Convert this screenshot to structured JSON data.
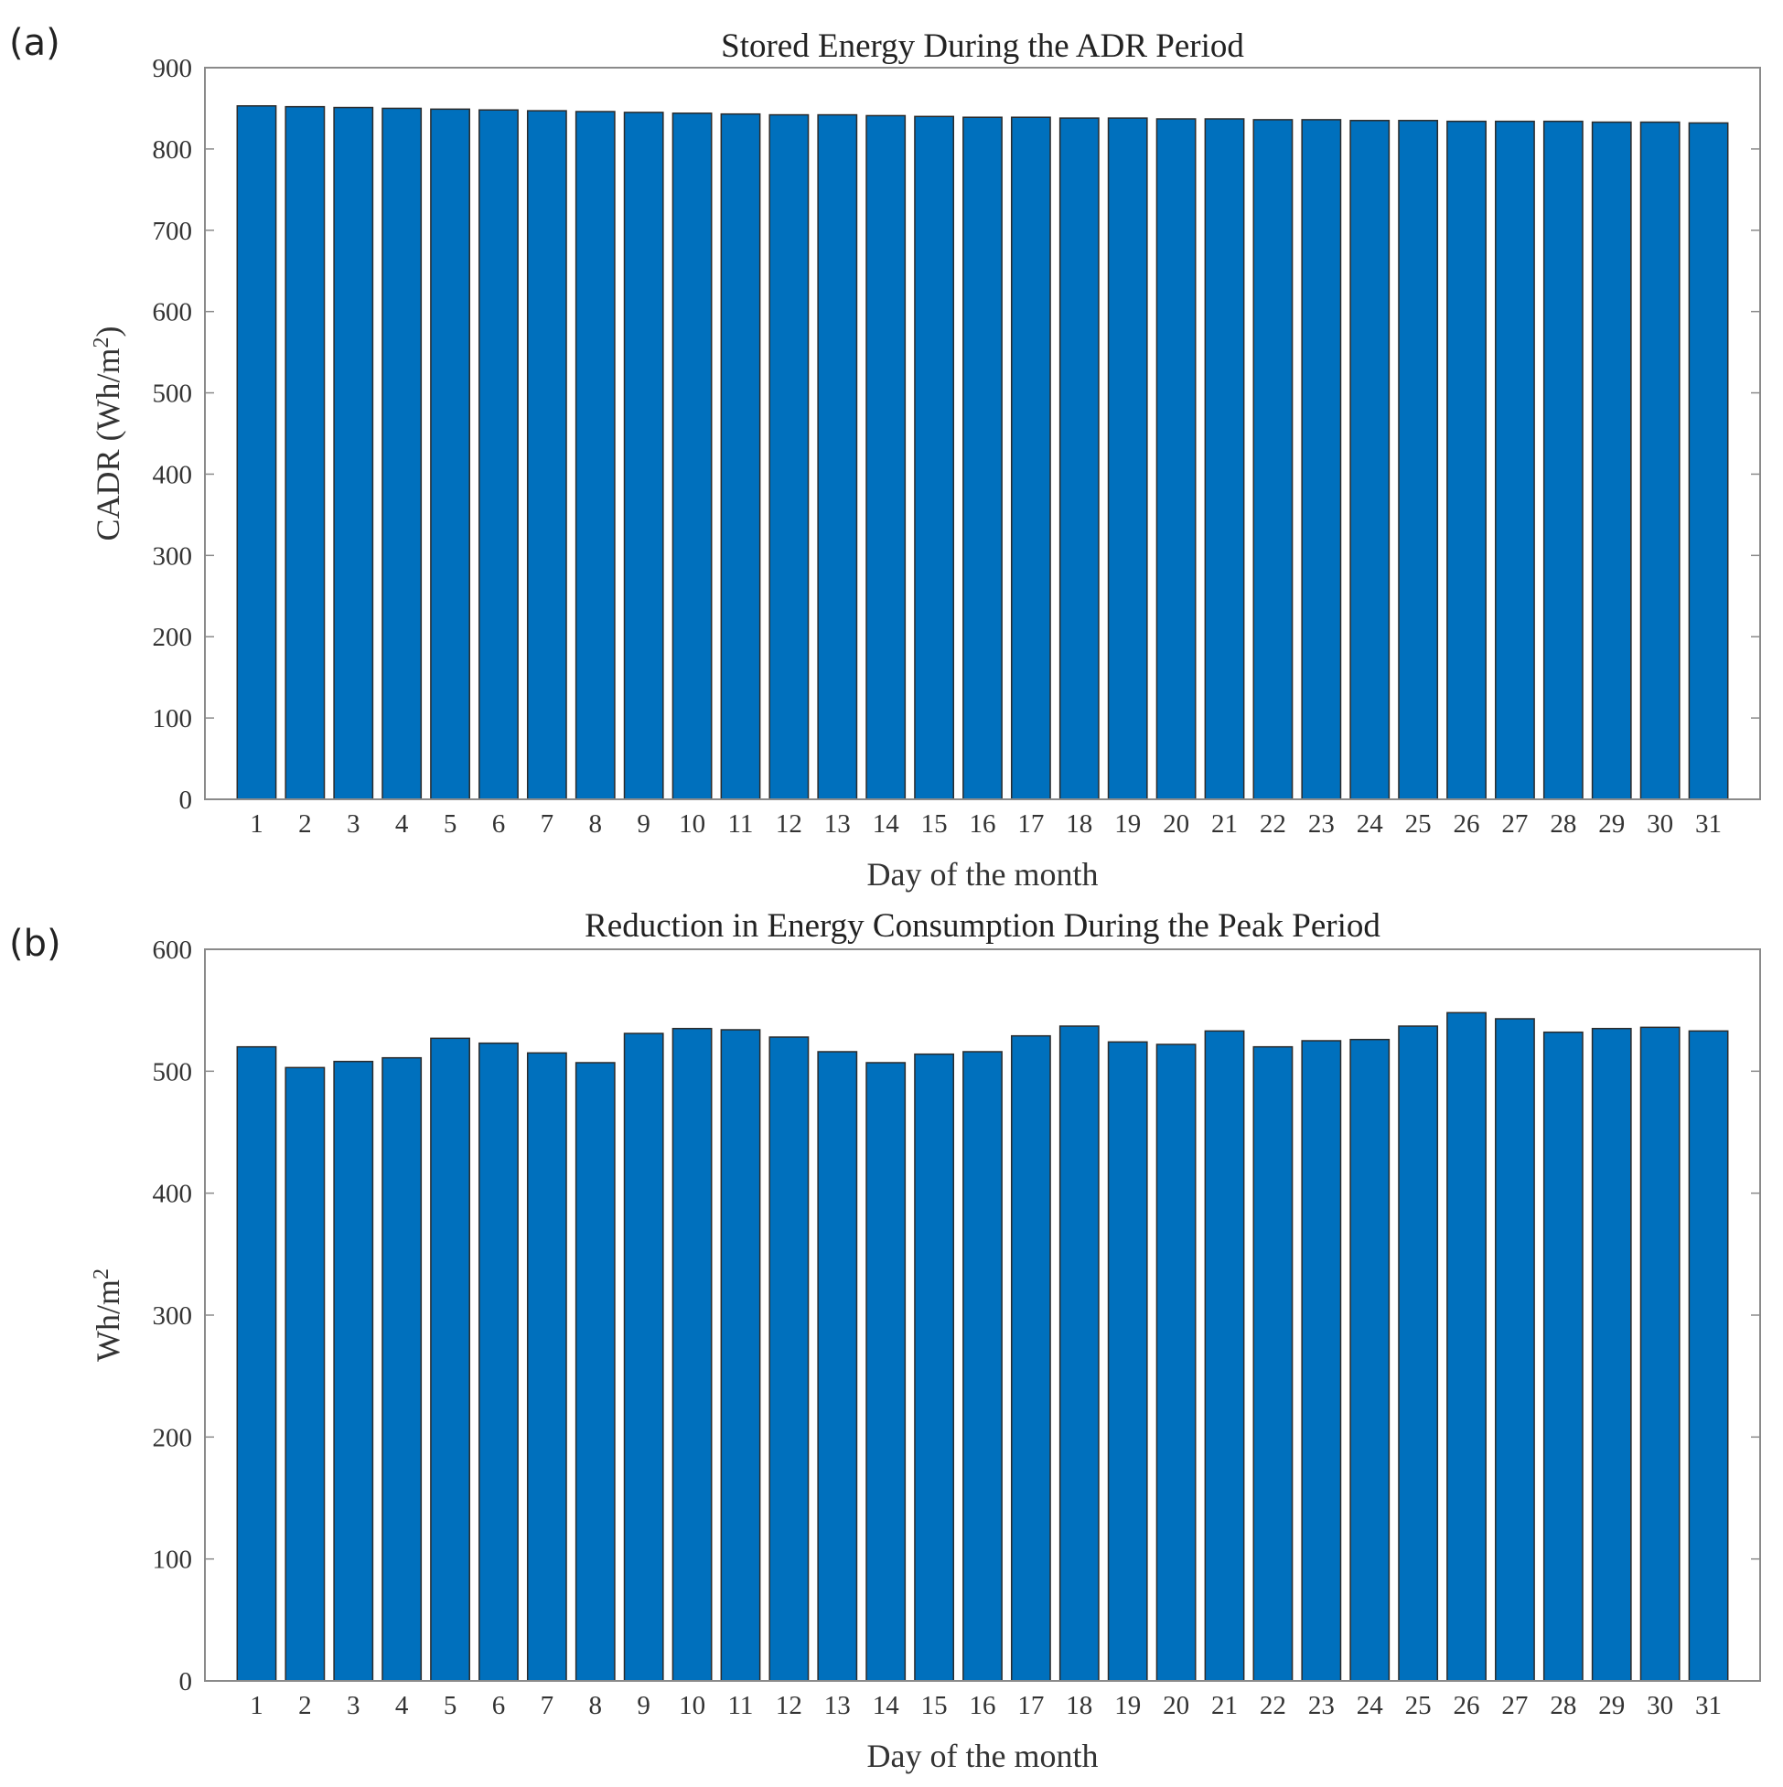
{
  "figure": {
    "panels": [
      "(a)",
      "(b)"
    ]
  },
  "colors": {
    "bar_fill": "#0070BD",
    "bar_edge": "#2b2b2b",
    "axis": "#8a8a8a",
    "text": "#333333"
  },
  "chart_data": [
    {
      "panel": "(a)",
      "type": "bar",
      "title": "Stored Energy During the ADR Period",
      "xlabel": "Day of the month",
      "ylabel": "CADR (Wh/m²)",
      "ylabel_parts": {
        "main": "CADR (Wh/m",
        "sup": "2",
        "tail": ")"
      },
      "ylim": [
        0,
        900
      ],
      "yticks": [
        0,
        100,
        200,
        300,
        400,
        500,
        600,
        700,
        800,
        900
      ],
      "categories": [
        "1",
        "2",
        "3",
        "4",
        "5",
        "6",
        "7",
        "8",
        "9",
        "10",
        "11",
        "12",
        "13",
        "14",
        "15",
        "16",
        "17",
        "18",
        "19",
        "20",
        "21",
        "22",
        "23",
        "24",
        "25",
        "26",
        "27",
        "28",
        "29",
        "30",
        "31"
      ],
      "values": [
        853,
        852,
        851,
        850,
        849,
        848,
        847,
        846,
        845,
        844,
        843,
        842,
        842,
        841,
        840,
        839,
        839,
        838,
        838,
        837,
        837,
        836,
        836,
        835,
        835,
        834,
        834,
        834,
        833,
        833,
        832
      ]
    },
    {
      "panel": "(b)",
      "type": "bar",
      "title": "Reduction in Energy Consumption During the Peak Period",
      "xlabel": "Day of the month",
      "ylabel": "Wh/m²",
      "ylabel_parts": {
        "main": "Wh/m",
        "sup": "2",
        "tail": ""
      },
      "ylim": [
        0,
        600
      ],
      "yticks": [
        0,
        100,
        200,
        300,
        400,
        500,
        600
      ],
      "categories": [
        "1",
        "2",
        "3",
        "4",
        "5",
        "6",
        "7",
        "8",
        "9",
        "10",
        "11",
        "12",
        "13",
        "14",
        "15",
        "16",
        "17",
        "18",
        "19",
        "20",
        "21",
        "22",
        "23",
        "24",
        "25",
        "26",
        "27",
        "28",
        "29",
        "30",
        "31"
      ],
      "values": [
        520,
        503,
        508,
        511,
        527,
        523,
        515,
        507,
        531,
        535,
        534,
        528,
        516,
        507,
        514,
        516,
        529,
        537,
        524,
        522,
        533,
        520,
        525,
        526,
        537,
        548,
        543,
        532,
        535,
        536,
        533
      ]
    }
  ]
}
